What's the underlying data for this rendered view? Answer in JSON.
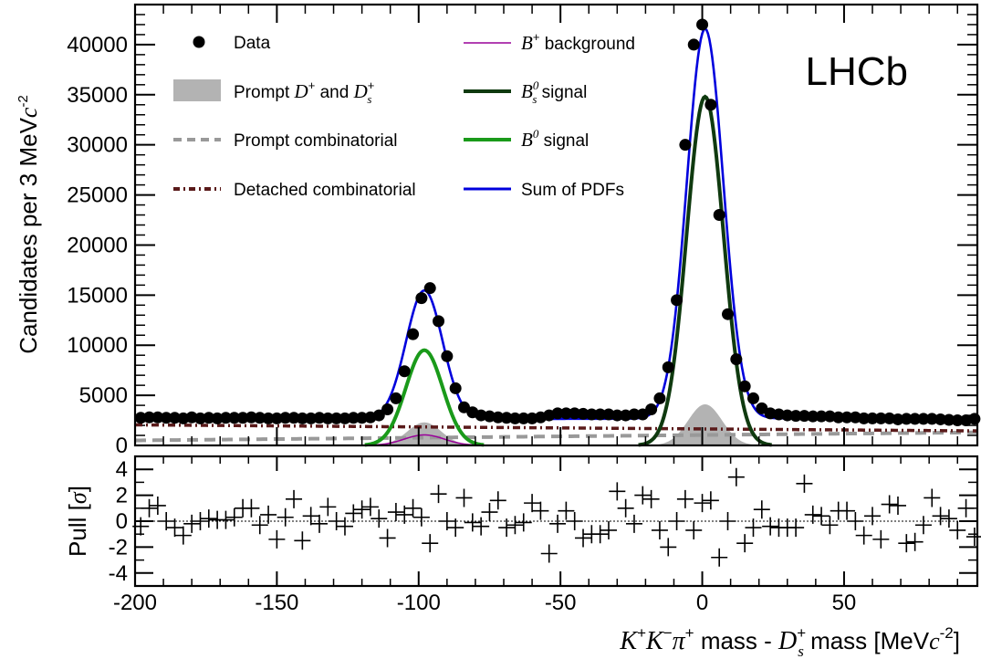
{
  "chart_data": [
    {
      "type": "scatter",
      "brand": "LHCb",
      "ylabel": {
        "text": "Candidates per 3 MeV",
        "unit_symbol": "c",
        "unit_power": "-2"
      },
      "xlim": [
        -200,
        97
      ],
      "ylim": [
        0,
        44000
      ],
      "yticks": [
        0,
        5000,
        10000,
        15000,
        20000,
        25000,
        30000,
        35000,
        40000
      ],
      "legend": {
        "placement": "top-left",
        "entries": [
          {
            "key": "data",
            "label": "Data"
          },
          {
            "key": "prompt_ds",
            "label_prefix": "Prompt ",
            "label_mid": " and ",
            "sym1_main": "D",
            "sym1_sup": "+",
            "sym2_main": "D",
            "sym2_sub": "s",
            "sym2_sup": "+"
          },
          {
            "key": "prompt_comb",
            "label": "Prompt combinatorial"
          },
          {
            "key": "detached_comb",
            "label": "Detached combinatorial"
          },
          {
            "key": "bplus",
            "label_sym": "B",
            "label_sup": "+",
            "label_rest": " background"
          },
          {
            "key": "bs_signal",
            "label_sym": "B",
            "label_sub": "s",
            "label_sup": "0",
            "label_rest": " signal"
          },
          {
            "key": "b0_signal",
            "label_sym": "B",
            "label_sup": "0",
            "label_rest": " signal"
          },
          {
            "key": "sum",
            "label": "Sum of PDFs"
          }
        ]
      },
      "colors": {
        "data": "#000000",
        "prompt_ds": "#b3b3b3",
        "prompt_comb": "#999999",
        "detached_comb": "#5a1a1a",
        "bplus": "#990099",
        "bs_signal": "#0f3a0f",
        "b0_signal": "#1a9a1a",
        "sum": "#0000dd"
      },
      "series": [
        {
          "name": "Data",
          "x": [
            -198,
            -195,
            -192,
            -189,
            -186,
            -183,
            -180,
            -177,
            -174,
            -171,
            -168,
            -165,
            -162,
            -159,
            -156,
            -153,
            -150,
            -147,
            -144,
            -141,
            -138,
            -135,
            -132,
            -129,
            -126,
            -123,
            -120,
            -117,
            -114,
            -111,
            -108,
            -105,
            -102,
            -99,
            -96,
            -93,
            -90,
            -87,
            -84,
            -81,
            -78,
            -75,
            -72,
            -69,
            -66,
            -63,
            -60,
            -57,
            -54,
            -51,
            -48,
            -45,
            -42,
            -39,
            -36,
            -33,
            -30,
            -27,
            -24,
            -21,
            -18,
            -15,
            -12,
            -9,
            -6,
            -3,
            0,
            3,
            6,
            9,
            12,
            15,
            18,
            21,
            24,
            27,
            30,
            33,
            36,
            39,
            42,
            45,
            48,
            51,
            54,
            57,
            60,
            63,
            66,
            69,
            72,
            75,
            78,
            81,
            84,
            87,
            90,
            93,
            96
          ],
          "y": [
            2750,
            2800,
            2800,
            2750,
            2750,
            2700,
            2800,
            2700,
            2750,
            2700,
            2750,
            2750,
            2750,
            2800,
            2750,
            2700,
            2700,
            2750,
            2750,
            2700,
            2700,
            2750,
            2700,
            2700,
            2700,
            2750,
            2750,
            2800,
            3000,
            3600,
            4700,
            7400,
            11100,
            14700,
            15700,
            12400,
            8900,
            5700,
            3800,
            3300,
            3000,
            2900,
            2800,
            2750,
            2700,
            2700,
            2700,
            2800,
            3000,
            3200,
            3200,
            3200,
            3150,
            3100,
            3100,
            3100,
            3000,
            3000,
            3100,
            3100,
            3600,
            4700,
            7800,
            14500,
            30000,
            40000,
            42000,
            34000,
            23000,
            13100,
            8600,
            5900,
            4700,
            3700,
            3200,
            3100,
            3000,
            2950,
            2950,
            2900,
            2900,
            2900,
            2800,
            2800,
            2800,
            2700,
            2700,
            2700,
            2700,
            2600,
            2650,
            2650,
            2650,
            2650,
            2600,
            2550,
            2500,
            2500,
            2650
          ]
        },
        {
          "name": "Pull",
          "x": [
            -198,
            -195,
            -192,
            -189,
            -186,
            -183,
            -180,
            -177,
            -174,
            -171,
            -168,
            -165,
            -162,
            -159,
            -156,
            -153,
            -150,
            -147,
            -144,
            -141,
            -138,
            -135,
            -132,
            -129,
            -126,
            -123,
            -120,
            -117,
            -114,
            -111,
            -108,
            -105,
            -102,
            -99,
            -96,
            -93,
            -90,
            -87,
            -84,
            -81,
            -78,
            -75,
            -72,
            -69,
            -66,
            -63,
            -60,
            -57,
            -54,
            -51,
            -48,
            -45,
            -42,
            -39,
            -36,
            -33,
            -30,
            -27,
            -24,
            -21,
            -18,
            -15,
            -12,
            -9,
            -6,
            -3,
            0,
            3,
            6,
            9,
            12,
            15,
            18,
            21,
            24,
            27,
            30,
            33,
            36,
            39,
            42,
            45,
            48,
            51,
            54,
            57,
            60,
            63,
            66,
            69,
            72,
            75,
            78,
            81,
            84,
            87,
            90,
            93,
            96
          ],
          "y": [
            -0.4,
            1.0,
            1.2,
            0.0,
            -0.5,
            -1.1,
            -0.2,
            0.0,
            0.2,
            0.1,
            0.1,
            0.3,
            1.0,
            1.0,
            -0.3,
            0.5,
            -1.4,
            0.3,
            1.7,
            -1.5,
            0.4,
            -0.2,
            1.1,
            0.0,
            -0.4,
            0.6,
            0.9,
            1.1,
            0.2,
            -1.3,
            0.7,
            0.5,
            1.0,
            0.3,
            -1.7,
            2.1,
            0.0,
            -0.5,
            1.8,
            -0.1,
            -0.4,
            0.7,
            1.6,
            -0.5,
            -0.3,
            -0.1,
            1.4,
            0.8,
            -2.5,
            -0.2,
            0.8,
            0.0,
            -1.3,
            -1.0,
            -1.0,
            -0.7,
            2.3,
            1.0,
            -0.2,
            2.0,
            1.7,
            -0.7,
            -2.0,
            0.0,
            1.7,
            -0.7,
            1.4,
            1.6,
            -2.8,
            0.0,
            3.4,
            -1.7,
            -0.5,
            0.9,
            -0.4,
            -0.5,
            -0.5,
            -0.5,
            2.9,
            0.5,
            0.4,
            -0.3,
            0.8,
            0.8,
            0.0,
            -1.1,
            0.4,
            -1.4,
            1.3,
            1.2,
            -1.7,
            -1.6,
            -0.3,
            1.8,
            0.4,
            0.2,
            -0.7,
            1.0,
            -1.2
          ]
        }
      ],
      "components": [
        {
          "name": "Sum of PDFs",
          "key": "sum",
          "source": "computed from other components"
        },
        {
          "name": "Bs0 signal",
          "key": "bs_signal",
          "mean": 1,
          "sigma": 6.5,
          "amplitude": 34800
        },
        {
          "name": "B0 signal",
          "key": "b0_signal",
          "mean": -98,
          "sigma": 6.5,
          "amplitude": 9500
        },
        {
          "name": "Prompt D+ and Ds+",
          "key": "prompt_ds",
          "peaks": [
            {
              "mean": 1,
              "sigma": 6.0,
              "amplitude": 4100
            },
            {
              "mean": -98,
              "sigma": 6.0,
              "amplitude": 2300
            }
          ]
        },
        {
          "name": "B+ background",
          "key": "bplus",
          "mean": -98,
          "sigma": 7,
          "amplitude": 1050
        },
        {
          "name": "Prompt combinatorial",
          "key": "prompt_comb",
          "y_at_xmin": 500,
          "y_at_xmax": 1300
        },
        {
          "name": "Detached combinatorial",
          "key": "detached_comb",
          "y_at_xmin": 2050,
          "y_at_xmax": 1450
        }
      ]
    },
    {
      "type": "scatter",
      "ylabel": "Pull  [σ]",
      "ylabel_main": "Pull",
      "ylabel_unit": "σ",
      "xlim": [
        -200,
        97
      ],
      "ylim": [
        -5,
        5
      ],
      "yticks": [
        -4,
        -2,
        0,
        2,
        4
      ],
      "xticks": [
        -200,
        -150,
        -100,
        -50,
        0,
        50
      ],
      "xlabel": {
        "k1": "K",
        "k1_sup": "+",
        "k2": "K",
        "k2_sup": "−",
        "pi": "π",
        "pi_sup": "+",
        "mid": " mass - ",
        "ds": "D",
        "ds_sub": "s",
        "ds_sup": "+",
        "tail": " mass  [MeV",
        "unit_symbol": "c",
        "unit_power": "-2",
        "close": "]"
      }
    }
  ]
}
